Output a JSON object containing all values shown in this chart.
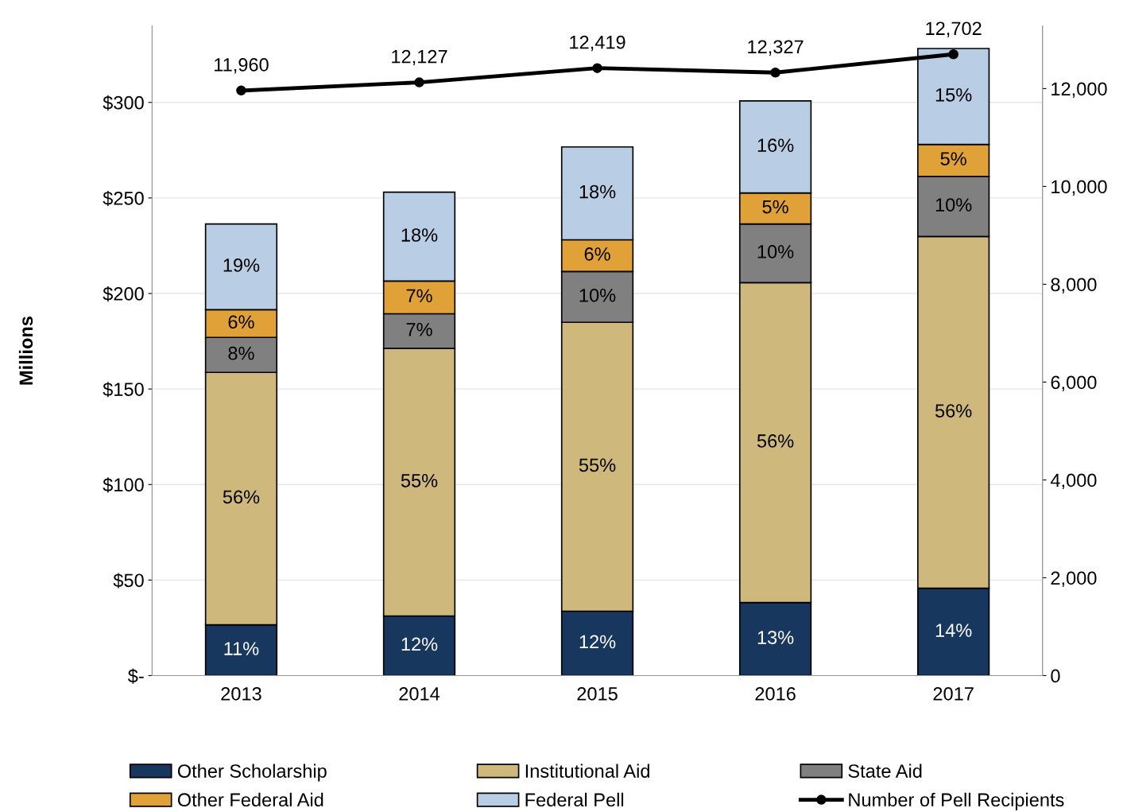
{
  "chart_data": {
    "type": "bar",
    "stacked": true,
    "ylabel": "Millions",
    "categories": [
      "2013",
      "2014",
      "2015",
      "2016",
      "2017"
    ],
    "series": [
      {
        "name": "Other Scholarship",
        "color": "#17375e",
        "values": [
          26.6,
          31.2,
          33.7,
          38.2,
          45.7
        ]
      },
      {
        "name": "Institutional Aid",
        "color": "#cfb87c",
        "values": [
          132.1,
          140.0,
          151.2,
          167.5,
          184.1
        ]
      },
      {
        "name": "State Aid",
        "color": "#808080",
        "values": [
          18.3,
          18.2,
          26.6,
          30.7,
          31.5
        ]
      },
      {
        "name": "Other Federal Aid",
        "color": "#e0a238",
        "values": [
          14.5,
          17.1,
          16.6,
          16.2,
          16.7
        ]
      },
      {
        "name": "Federal Pell",
        "color": "#b9cde5",
        "values": [
          44.9,
          46.5,
          48.6,
          48.2,
          50.2
        ]
      },
      {
        "name": "Number of Pell Recipients",
        "type": "line",
        "axis": "y2",
        "color": "#000000",
        "marker": "circle",
        "values": [
          11960,
          12127,
          12419,
          12327,
          12702
        ],
        "value_labels": [
          "11,960",
          "12,127",
          "12,419",
          "12,327",
          "12,702"
        ]
      }
    ],
    "annotations": [
      "11%",
      "56%",
      "8%",
      "6%",
      "19%",
      "12%",
      "55%",
      "7%",
      "7%",
      "18%",
      "12%",
      "55%",
      "10%",
      "6%",
      "18%",
      "13%",
      "56%",
      "10%",
      "5%",
      "16%",
      "14%",
      "56%",
      "10%",
      "5%",
      "15%"
    ],
    "ylim": [
      0,
      340
    ],
    "yticks": [
      {
        "value": 0,
        "label": "$-"
      },
      {
        "value": 50,
        "label": "$50"
      },
      {
        "value": 100,
        "label": "$100"
      },
      {
        "value": 150,
        "label": "$150"
      },
      {
        "value": 200,
        "label": "$200"
      },
      {
        "value": 250,
        "label": "$250"
      },
      {
        "value": 300,
        "label": "$300"
      }
    ],
    "y2lim": [
      0,
      13280
    ],
    "y2ticks": [
      0,
      {
        "value": 2000,
        "label": "2,000"
      },
      {
        "value": 4000,
        "label": "4,000"
      },
      {
        "value": 6000,
        "label": "6,000"
      },
      {
        "value": 8000,
        "label": "8,000"
      },
      {
        "value": 10000,
        "label": "10,000"
      },
      {
        "value": 12000,
        "label": "12,000"
      }
    ],
    "grid": "y",
    "legend": "bottom"
  }
}
